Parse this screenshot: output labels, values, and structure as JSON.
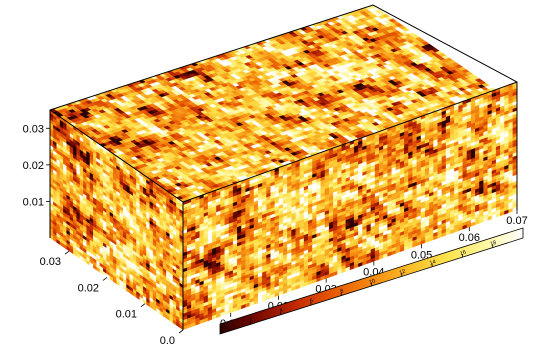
{
  "chart_data": {
    "type": "heatmap",
    "title": "",
    "xlabel": "",
    "ylabel": "",
    "zlabel": "",
    "grid": false,
    "legend": "colorbar bottom-right",
    "colormap": [
      "#2a0000",
      "#7a0a00",
      "#c22a00",
      "#e85a00",
      "#f58a10",
      "#fbbd2a",
      "#ffe24a",
      "#fff7a0",
      "#ffffff"
    ],
    "value_range": [
      0,
      20
    ],
    "axes": {
      "depth": {
        "range": [
          0,
          0.035
        ],
        "ticks": [
          "0.0",
          "0.01",
          "0.02",
          "0.03"
        ]
      },
      "length": {
        "range": [
          0,
          0.07
        ],
        "ticks": [
          "0.01",
          "0.02",
          "0.03",
          "0.04",
          "0.05",
          "0.06",
          "0.07"
        ]
      },
      "height": {
        "range": [
          0,
          0.035
        ],
        "ticks": [
          "0.01",
          "0.02",
          "0.03"
        ]
      }
    },
    "colorbar": {
      "range": [
        0,
        20
      ],
      "ticks": [
        "2",
        "4",
        "6",
        "8",
        "10",
        "12",
        "14",
        "16",
        "18"
      ]
    }
  }
}
